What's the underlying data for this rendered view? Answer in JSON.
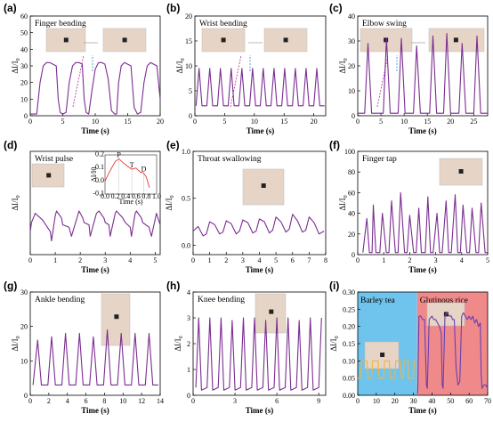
{
  "colors": {
    "line": "#7b2d91",
    "dashed": "#b0288f",
    "arrow": "#2f86c8",
    "barley_bg": "#6ec4ec",
    "glutinous_bg": "#f08a8a",
    "barley_line": "#f3b33d",
    "glutinous_line": "#6a3fb2",
    "inset_line": "#e8362c"
  },
  "chart_data": [
    {
      "type": "line",
      "label": "(a)",
      "title": "Finger bending",
      "xlabel": "Time (s)",
      "ylabel": "ΔI/I0",
      "xlim": [
        0,
        20
      ],
      "ylim": [
        0,
        60
      ],
      "xticks": [
        0,
        5,
        10,
        15,
        20
      ],
      "yticks": [
        0,
        10,
        20,
        30,
        40,
        50,
        60
      ],
      "series": [
        {
          "x": [
            0,
            1,
            1.5,
            2,
            2.5,
            3,
            3.5,
            4,
            4.3,
            4.6,
            5,
            5.5,
            6,
            6.5,
            7,
            7.5,
            8,
            8.3,
            8.6,
            9,
            9.5,
            10,
            10.5,
            11,
            11.5,
            12,
            12.5,
            13,
            13.3,
            13.6,
            14,
            14.5,
            15,
            15.5,
            16,
            16.5,
            17,
            17.5,
            18,
            18.5,
            19,
            19.5,
            20
          ],
          "y": [
            1,
            1,
            20,
            30,
            32,
            32,
            31,
            30,
            10,
            2,
            1,
            2,
            20,
            30,
            32,
            32,
            31,
            10,
            2,
            1,
            15,
            28,
            32,
            32,
            31,
            22,
            3,
            1,
            1,
            20,
            30,
            32,
            31,
            30,
            5,
            1,
            2,
            20,
            30,
            32,
            31,
            30,
            10
          ]
        }
      ]
    },
    {
      "type": "line",
      "label": "(b)",
      "title": "Wrist bending",
      "xlabel": "Time (s)",
      "ylabel": "ΔI/I0",
      "xlim": [
        0,
        22
      ],
      "ylim": [
        0,
        20
      ],
      "xticks": [
        0,
        5,
        10,
        15,
        20
      ],
      "yticks": [
        0,
        5,
        10,
        15,
        20
      ],
      "series": [
        {
          "x": [
            0.2,
            0.7,
            1.2,
            2.0,
            2.5,
            3.0,
            3.8,
            4.3,
            4.8,
            5.6,
            6.1,
            6.6,
            7.4,
            7.9,
            8.4,
            9.2,
            9.7,
            10.2,
            11.0,
            11.5,
            12.0,
            12.8,
            13.3,
            13.8,
            14.6,
            15.1,
            15.6,
            16.4,
            16.9,
            17.4,
            18.2,
            18.7,
            19.2,
            20.0,
            20.5,
            21.0,
            21.8
          ],
          "y": [
            2,
            9.5,
            2,
            2,
            9.5,
            2,
            2,
            9.5,
            2,
            2,
            9.5,
            2,
            2,
            9.5,
            2,
            2,
            9.5,
            2,
            2,
            9.5,
            2,
            2,
            9.5,
            2,
            2,
            9.5,
            2,
            2,
            9.5,
            2,
            2,
            9.5,
            2,
            2,
            9.5,
            2,
            2
          ]
        }
      ]
    },
    {
      "type": "line",
      "label": "(c)",
      "title": "Elbow swing",
      "xlabel": "Time (s)",
      "ylabel": "ΔI/I0",
      "xlim": [
        0,
        28
      ],
      "ylim": [
        0,
        40
      ],
      "xticks": [
        0,
        5,
        10,
        15,
        20,
        25
      ],
      "yticks": [
        0,
        10,
        20,
        30,
        40
      ],
      "series": [
        {
          "x": [
            0,
            1.5,
            2.2,
            3,
            4.5,
            5.5,
            6.2,
            7,
            8.7,
            9.4,
            10.2,
            12,
            12.7,
            13.5,
            15.5,
            16.2,
            17,
            18.5,
            19.2,
            20,
            21.8,
            22.5,
            23.3,
            25,
            25.7,
            26.5,
            28
          ],
          "y": [
            1,
            1,
            29,
            1,
            1,
            1,
            31,
            1,
            1,
            31,
            1,
            1,
            28,
            1,
            1,
            32,
            1,
            1,
            33,
            1,
            1,
            29,
            1,
            1,
            32,
            1,
            1
          ]
        }
      ]
    },
    {
      "type": "line",
      "label": "(d)",
      "title": "Wrist pulse",
      "xlabel": "Time (s)",
      "ylabel": "ΔI/I0",
      "xlim": [
        0,
        5.2
      ],
      "ylim": [
        -0.05,
        0.4
      ],
      "xticks": [
        0,
        1,
        2,
        3,
        4,
        5
      ],
      "yticks": [],
      "series": [
        {
          "x": [
            0,
            0.05,
            0.2,
            0.5,
            0.8,
            0.85,
            1.0,
            1.05,
            1.25,
            1.3,
            1.55,
            1.65,
            1.9,
            1.95,
            2.1,
            2.15,
            2.35,
            2.4,
            2.65,
            2.75,
            2.95,
            3.0,
            3.15,
            3.2,
            3.4,
            3.45,
            3.7,
            3.8,
            4.0,
            4.05,
            4.2,
            4.25,
            4.45,
            4.5,
            4.75,
            4.85,
            5.05,
            5.2
          ],
          "y": [
            0.05,
            0.09,
            0.13,
            0.1,
            0.05,
            0.01,
            0.12,
            0.14,
            0.11,
            0.08,
            0.07,
            0.03,
            0.12,
            0.14,
            0.11,
            0.09,
            0.08,
            0.03,
            0.13,
            0.14,
            0.11,
            0.09,
            0.08,
            0.03,
            0.13,
            0.14,
            0.11,
            0.09,
            0.07,
            0.03,
            0.13,
            0.14,
            0.11,
            0.09,
            0.07,
            0.03,
            0.13,
            0.08
          ]
        }
      ],
      "inset": {
        "xlabel": "Time (s)",
        "ylabel": "ΔI/I0",
        "xlim": [
          0,
          1
        ],
        "ylim": [
          -0.1,
          0.2
        ],
        "xticks": [
          "0.0",
          "0.2",
          "0.4",
          "0.6",
          "0.8",
          "1.0"
        ],
        "yticks": [
          "-0.1",
          "0.0",
          "0.1",
          "0.2"
        ],
        "peaks": [
          "P",
          "T",
          "D"
        ],
        "x": [
          0,
          0.1,
          0.2,
          0.27,
          0.35,
          0.45,
          0.52,
          0.6,
          0.68,
          0.75,
          0.8,
          0.86
        ],
        "y": [
          0.0,
          0.08,
          0.15,
          0.17,
          0.14,
          0.11,
          0.09,
          0.1,
          0.07,
          0.06,
          0.03,
          -0.05
        ]
      }
    },
    {
      "type": "line",
      "label": "(e)",
      "title": "Throat swallowing",
      "xlabel": "Time (s)",
      "ylabel": "ΔI/I0",
      "xlim": [
        0,
        8
      ],
      "ylim": [
        -0.1,
        1.0
      ],
      "xticks": [
        0,
        1,
        2,
        3,
        4,
        5,
        6,
        7,
        8
      ],
      "yticks": [
        "0.0",
        "0.5",
        "1.0"
      ],
      "series": [
        {
          "x": [
            0,
            0.3,
            0.6,
            0.8,
            1.0,
            1.3,
            1.6,
            1.8,
            2.0,
            2.3,
            2.6,
            2.8,
            3.0,
            3.3,
            3.6,
            3.8,
            4.0,
            4.3,
            4.6,
            4.8,
            5.0,
            5.3,
            5.6,
            5.8,
            6.0,
            6.3,
            6.6,
            6.8,
            7.0,
            7.3,
            7.6,
            7.9
          ],
          "y": [
            0.15,
            0.2,
            0.1,
            0.12,
            0.25,
            0.22,
            0.12,
            0.14,
            0.26,
            0.23,
            0.12,
            0.15,
            0.27,
            0.24,
            0.13,
            0.15,
            0.28,
            0.25,
            0.13,
            0.16,
            0.3,
            0.25,
            0.14,
            0.17,
            0.33,
            0.26,
            0.14,
            0.16,
            0.3,
            0.24,
            0.12,
            0.15
          ]
        }
      ]
    },
    {
      "type": "line",
      "label": "(f)",
      "title": "Finger tap",
      "xlabel": "Time (s)",
      "ylabel": "ΔI/I0",
      "xlim": [
        0,
        5
      ],
      "ylim": [
        0,
        100
      ],
      "xticks": [
        0,
        1,
        2,
        3,
        4,
        5
      ],
      "yticks": [
        0,
        20,
        40,
        60,
        80,
        100
      ],
      "series": [
        {
          "x": [
            0.2,
            0.35,
            0.45,
            0.55,
            0.6,
            0.7,
            0.85,
            0.95,
            1.1,
            1.2,
            1.3,
            1.45,
            1.55,
            1.65,
            1.8,
            1.9,
            2.0,
            2.15,
            2.25,
            2.35,
            2.45,
            2.6,
            2.7,
            2.8,
            2.9,
            3.05,
            3.15,
            3.25,
            3.4,
            3.5,
            3.6,
            3.75,
            3.85,
            3.95,
            4.05,
            4.2,
            4.3,
            4.4,
            4.55,
            4.65,
            4.75,
            4.9,
            5.0
          ],
          "y": [
            2,
            35,
            2,
            2,
            48,
            2,
            2,
            40,
            2,
            2,
            52,
            2,
            2,
            60,
            2,
            2,
            38,
            2,
            2,
            45,
            2,
            2,
            56,
            2,
            2,
            40,
            2,
            2,
            52,
            2,
            2,
            58,
            2,
            2,
            48,
            2,
            2,
            45,
            2,
            2,
            50,
            2,
            2
          ]
        }
      ]
    },
    {
      "type": "line",
      "label": "(g)",
      "title": "Ankle bending",
      "xlabel": "Time (s)",
      "ylabel": "ΔI/I0",
      "xlim": [
        0,
        14
      ],
      "ylim": [
        0,
        30
      ],
      "xticks": [
        0,
        2,
        4,
        6,
        8,
        10,
        12,
        14
      ],
      "yticks": [
        0,
        10,
        20,
        30
      ],
      "series": [
        {
          "x": [
            0.3,
            0.8,
            1.2,
            1.9,
            2.3,
            2.7,
            3.4,
            3.8,
            4.2,
            4.9,
            5.3,
            5.7,
            6.4,
            6.8,
            7.2,
            7.9,
            8.3,
            8.7,
            9.4,
            9.8,
            10.2,
            10.9,
            11.3,
            11.7,
            12.4,
            12.8,
            13.2,
            13.8
          ],
          "y": [
            3,
            16,
            3,
            3,
            17,
            3,
            3,
            18,
            3,
            3,
            18,
            3,
            3,
            17,
            3,
            3,
            19,
            3,
            3,
            18,
            3,
            3,
            18,
            3,
            3,
            18,
            3,
            3
          ]
        }
      ]
    },
    {
      "type": "line",
      "label": "(h)",
      "title": "Knee bending",
      "xlabel": "Time (s)",
      "ylabel": "ΔI/I0",
      "xlim": [
        0,
        9.5
      ],
      "ylim": [
        0,
        4
      ],
      "xticks": [
        0,
        3,
        6,
        9
      ],
      "yticks": [
        0,
        1,
        2,
        3,
        4
      ],
      "series": [
        {
          "x": [
            0.2,
            0.4,
            0.6,
            1.0,
            1.2,
            1.4,
            1.8,
            2.0,
            2.2,
            2.6,
            2.8,
            3.0,
            3.4,
            3.6,
            3.8,
            4.2,
            4.4,
            4.6,
            5.0,
            5.2,
            5.4,
            5.8,
            6.0,
            6.2,
            6.6,
            6.8,
            7.0,
            7.4,
            7.6,
            7.8,
            8.2,
            8.4,
            8.6,
            9.0,
            9.2
          ],
          "y": [
            0.3,
            3.0,
            0.2,
            0.3,
            3.0,
            0.2,
            0.3,
            3.0,
            0.2,
            0.3,
            2.9,
            0.2,
            0.3,
            3.0,
            0.2,
            0.3,
            3.0,
            0.2,
            0.3,
            2.9,
            0.2,
            0.3,
            3.0,
            0.2,
            0.3,
            3.0,
            0.2,
            0.3,
            2.9,
            0.2,
            0.3,
            3.0,
            0.2,
            0.3,
            3.0
          ]
        }
      ]
    },
    {
      "type": "line",
      "label": "(i)",
      "title": "",
      "xlabel": "Time (s)",
      "ylabel": "ΔI/I0",
      "xlim": [
        0,
        70
      ],
      "ylim": [
        0,
        0.3
      ],
      "xticks": [
        0,
        10,
        20,
        30,
        40,
        50,
        60,
        70
      ],
      "yticks": [
        "0.00",
        "0.05",
        "0.10",
        "0.15",
        "0.20",
        "0.25",
        "0.30"
      ],
      "regions": [
        {
          "name": "Barley tea",
          "from": 0,
          "to": 32
        },
        {
          "name": "Glutinous rice",
          "from": 32,
          "to": 70
        }
      ],
      "series": [
        {
          "x": [
            0,
            1.5,
            2,
            5,
            5.5,
            7.5,
            8,
            11,
            11.5,
            14,
            14.5,
            17,
            17.5,
            20,
            20.5,
            23,
            23.5,
            24.5,
            25,
            27,
            27.5,
            30,
            30.5,
            31
          ],
          "y": [
            0.05,
            0.05,
            0.1,
            0.1,
            0.05,
            0.05,
            0.1,
            0.1,
            0.05,
            0.05,
            0.1,
            0.1,
            0.05,
            0.05,
            0.1,
            0.1,
            0.05,
            0.05,
            0.1,
            0.1,
            0.05,
            0.05,
            0.1,
            0.1
          ]
        },
        {
          "x": [
            32,
            32.3,
            33,
            34,
            35,
            36,
            37,
            37.5,
            38.5,
            40,
            41,
            42,
            43,
            44,
            45,
            45.5,
            46,
            47,
            48,
            49.5,
            50.5,
            51,
            52,
            53,
            54,
            55,
            56,
            57,
            58,
            59,
            60,
            61,
            62,
            63,
            64,
            65,
            66,
            66.5,
            67,
            68,
            69,
            70
          ],
          "y": [
            0.005,
            0.008,
            0.23,
            0.23,
            0.22,
            0.22,
            0.03,
            0.02,
            0.22,
            0.23,
            0.22,
            0.22,
            0.21,
            0.2,
            0.18,
            0.03,
            0.02,
            0.23,
            0.24,
            0.23,
            0.23,
            0.22,
            0.22,
            0.08,
            0.03,
            0.04,
            0.23,
            0.24,
            0.23,
            0.22,
            0.23,
            0.22,
            0.23,
            0.21,
            0.22,
            0.2,
            0.21,
            0.06,
            0.02,
            0.03,
            0.03,
            0.02
          ]
        }
      ]
    }
  ]
}
